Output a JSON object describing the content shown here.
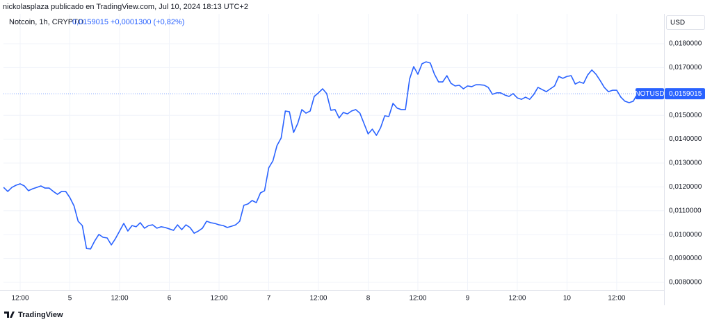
{
  "chart_data": {
    "type": "line",
    "header": "nickolasplaza publicado en TradingView.com, Jul 10, 2024 18:13 UTC+2",
    "title": "Notcoin, 1h, CRYPTO",
    "legend_values": "0,0159015 +0,0001300 (+0,82%)",
    "currency": "USD",
    "brand": "TradingView",
    "grid": true,
    "x": [
      4.333,
      4.375,
      4.417,
      4.458,
      4.5,
      4.542,
      4.583,
      4.625,
      4.667,
      4.708,
      4.75,
      4.792,
      4.833,
      4.875,
      4.917,
      4.958,
      5,
      5.042,
      5.083,
      5.125,
      5.167,
      5.208,
      5.25,
      5.292,
      5.333,
      5.375,
      5.417,
      5.458,
      5.5,
      5.542,
      5.583,
      5.625,
      5.667,
      5.708,
      5.75,
      5.792,
      5.833,
      5.875,
      5.917,
      5.958,
      6,
      6.042,
      6.083,
      6.125,
      6.167,
      6.208,
      6.25,
      6.292,
      6.333,
      6.375,
      6.417,
      6.458,
      6.5,
      6.542,
      6.583,
      6.625,
      6.667,
      6.708,
      6.75,
      6.792,
      6.833,
      6.875,
      6.917,
      6.958,
      7,
      7.042,
      7.083,
      7.125,
      7.167,
      7.208,
      7.25,
      7.292,
      7.333,
      7.375,
      7.417,
      7.458,
      7.5,
      7.542,
      7.583,
      7.625,
      7.667,
      7.708,
      7.75,
      7.792,
      7.833,
      7.875,
      7.917,
      7.958,
      8,
      8.042,
      8.083,
      8.125,
      8.167,
      8.208,
      8.25,
      8.292,
      8.333,
      8.375,
      8.417,
      8.458,
      8.5,
      8.542,
      8.583,
      8.625,
      8.667,
      8.708,
      8.75,
      8.792,
      8.833,
      8.875,
      8.917,
      8.958,
      9,
      9.042,
      9.083,
      9.125,
      9.167,
      9.208,
      9.25,
      9.292,
      9.333,
      9.375,
      9.417,
      9.458,
      9.5,
      9.542,
      9.583,
      9.625,
      9.667,
      9.708,
      9.75,
      9.792,
      9.833,
      9.875,
      9.917,
      9.958,
      10,
      10.042,
      10.083,
      10.125,
      10.167,
      10.208,
      10.25,
      10.292,
      10.333,
      10.375,
      10.417,
      10.458,
      10.5,
      10.542,
      10.583,
      10.625,
      10.667,
      10.708
    ],
    "series": [
      {
        "name": "NOTUSD",
        "color": "#2962ff",
        "price_label": "0,0159015",
        "values": [
          0.01198,
          0.01181,
          0.01198,
          0.01207,
          0.01213,
          0.01204,
          0.01184,
          0.01192,
          0.01198,
          0.01204,
          0.01195,
          0.01195,
          0.01181,
          0.01169,
          0.01181,
          0.01181,
          0.01155,
          0.0112,
          0.01056,
          0.01038,
          0.00942,
          0.0094,
          0.00974,
          0.01001,
          0.00989,
          0.00986,
          0.00957,
          0.00983,
          0.01015,
          0.01047,
          0.01015,
          0.01038,
          0.01033,
          0.0105,
          0.01027,
          0.01038,
          0.01041,
          0.01027,
          0.01033,
          0.0103,
          0.01024,
          0.01018,
          0.01041,
          0.01021,
          0.01041,
          0.0103,
          0.01006,
          0.01015,
          0.01027,
          0.01056,
          0.0105,
          0.01047,
          0.01041,
          0.01038,
          0.0103,
          0.01035,
          0.01041,
          0.01056,
          0.01123,
          0.01129,
          0.01143,
          0.01134,
          0.01175,
          0.01184,
          0.0128,
          0.01309,
          0.01373,
          0.01405,
          0.01518,
          0.01515,
          0.01428,
          0.01466,
          0.01524,
          0.01509,
          0.01518,
          0.01579,
          0.01594,
          0.01611,
          0.01591,
          0.01521,
          0.01524,
          0.01489,
          0.01512,
          0.01506,
          0.01518,
          0.01524,
          0.01509,
          0.01466,
          0.01422,
          0.01442,
          0.01416,
          0.01448,
          0.01498,
          0.01495,
          0.0155,
          0.0153,
          0.01524,
          0.01524,
          0.01652,
          0.01704,
          0.01672,
          0.01716,
          0.01724,
          0.01719,
          0.01672,
          0.0164,
          0.0164,
          0.01666,
          0.01634,
          0.01623,
          0.01626,
          0.01611,
          0.01623,
          0.0162,
          0.01628,
          0.01628,
          0.01626,
          0.01617,
          0.01588,
          0.01594,
          0.01594,
          0.01585,
          0.01579,
          0.01591,
          0.01573,
          0.01567,
          0.01576,
          0.01567,
          0.01588,
          0.01617,
          0.01608,
          0.01599,
          0.01611,
          0.01623,
          0.01663,
          0.01655,
          0.01663,
          0.01666,
          0.01631,
          0.0164,
          0.01634,
          0.01669,
          0.0169,
          0.01672,
          0.01646,
          0.01617,
          0.01599,
          0.01605,
          0.01605,
          0.01576,
          0.01559,
          0.01553,
          0.01559,
          0.0159015
        ]
      }
    ],
    "xlim": [
      4.332,
      10.976
    ],
    "xticks": [
      {
        "value": 4.5,
        "label": "12:00"
      },
      5,
      {
        "value": 5.5,
        "label": "12:00"
      },
      6,
      {
        "value": 6.5,
        "label": "12:00"
      },
      7,
      {
        "value": 7.5,
        "label": "12:00"
      },
      8,
      {
        "value": 8.5,
        "label": "12:00"
      },
      9,
      {
        "value": 9.5,
        "label": "12:00"
      },
      10,
      {
        "value": 10.5,
        "label": "12:00"
      }
    ],
    "ylim": [
      0.00768,
      0.01925
    ],
    "yticks": [
      {
        "value": 0.018,
        "label": "0,0180000"
      },
      {
        "value": 0.017,
        "label": "0,0170000"
      },
      {
        "value": 0.015,
        "label": "0,0150000"
      },
      {
        "value": 0.014,
        "label": "0,0140000"
      },
      {
        "value": 0.013,
        "label": "0,0130000"
      },
      {
        "value": 0.012,
        "label": "0,0120000"
      },
      {
        "value": 0.011,
        "label": "0,0110000"
      },
      {
        "value": 0.01,
        "label": "0,0100000"
      },
      {
        "value": 0.009,
        "label": "0,0090000"
      },
      {
        "value": 0.008,
        "label": "0,0080000"
      }
    ]
  }
}
